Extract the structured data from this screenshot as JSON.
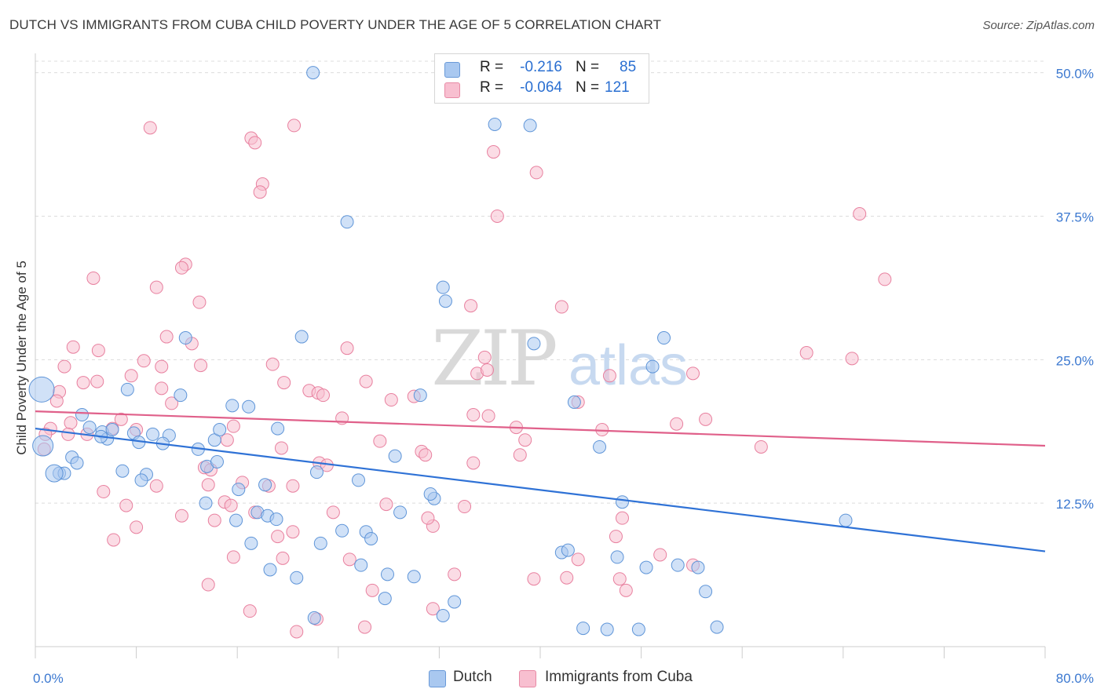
{
  "title": "DUTCH VS IMMIGRANTS FROM CUBA CHILD POVERTY UNDER THE AGE OF 5 CORRELATION CHART",
  "source": "Source: ZipAtlas.com",
  "watermark": {
    "zip": "ZIP",
    "atlas": "atlas"
  },
  "legend": {
    "rows": [
      {
        "r_label": "R =",
        "r_value": "-0.216",
        "n_label": "N =",
        "n_value": "85",
        "color": "#a9c8f0",
        "border": "#6a9ad8"
      },
      {
        "r_label": "R =",
        "r_value": "-0.064",
        "n_label": "N =",
        "n_value": "121",
        "color": "#f8bfd0",
        "border": "#e88aa5"
      }
    ]
  },
  "bottom_legend": {
    "dutch": "Dutch",
    "cuba": "Immigrants from Cuba"
  },
  "colors": {
    "dutch_fill": "#a9c8f0",
    "dutch_stroke": "#5f95d8",
    "cuba_fill": "#f8bfd0",
    "cuba_stroke": "#e8809f",
    "dutch_line": "#2f72d6",
    "cuba_line": "#e0608a",
    "axis_text": "#3b78d0"
  },
  "chart_data": {
    "type": "scatter",
    "title": "DUTCH VS IMMIGRANTS FROM CUBA CHILD POVERTY UNDER THE AGE OF 5 CORRELATION CHART",
    "xlabel": "",
    "ylabel": "Child Poverty Under the Age of 5",
    "xlim": [
      0,
      80
    ],
    "ylim": [
      0,
      51
    ],
    "x_tick_labels": [
      "0.0%",
      "80.0%"
    ],
    "y_ticks": [
      12.5,
      25.0,
      37.5,
      50.0
    ],
    "y_tick_labels": [
      "12.5%",
      "25.0%",
      "37.5%",
      "50.0%"
    ],
    "grid": true,
    "series": [
      {
        "name": "Dutch",
        "trend": {
          "x": [
            0,
            80
          ],
          "y": [
            19.0,
            8.3
          ]
        },
        "points": [
          [
            22.0,
            50.0
          ],
          [
            36.4,
            45.5
          ],
          [
            39.2,
            45.4
          ],
          [
            24.7,
            37.0
          ],
          [
            32.3,
            31.3
          ],
          [
            32.5,
            30.1
          ],
          [
            11.9,
            26.9
          ],
          [
            21.1,
            27.0
          ],
          [
            39.5,
            26.4
          ],
          [
            48.9,
            24.4
          ],
          [
            49.8,
            26.9
          ],
          [
            7.3,
            22.4
          ],
          [
            11.5,
            21.9
          ],
          [
            30.5,
            21.9
          ],
          [
            15.6,
            21.0
          ],
          [
            16.9,
            20.9
          ],
          [
            42.7,
            21.3
          ],
          [
            3.7,
            20.2
          ],
          [
            4.3,
            19.1
          ],
          [
            5.3,
            18.7
          ],
          [
            5.7,
            18.1
          ],
          [
            6.1,
            18.9
          ],
          [
            7.8,
            18.6
          ],
          [
            9.3,
            18.5
          ],
          [
            10.6,
            18.4
          ],
          [
            14.2,
            18.0
          ],
          [
            10.1,
            17.7
          ],
          [
            8.2,
            17.8
          ],
          [
            12.9,
            17.2
          ],
          [
            2.9,
            16.5
          ],
          [
            3.3,
            16.0
          ],
          [
            1.9,
            15.1
          ],
          [
            2.3,
            15.1
          ],
          [
            6.9,
            15.3
          ],
          [
            8.8,
            15.0
          ],
          [
            8.4,
            14.5
          ],
          [
            13.6,
            15.7
          ],
          [
            16.1,
            13.7
          ],
          [
            14.6,
            18.9
          ],
          [
            19.2,
            19.0
          ],
          [
            18.2,
            14.1
          ],
          [
            22.3,
            15.2
          ],
          [
            25.6,
            14.5
          ],
          [
            28.5,
            16.6
          ],
          [
            31.6,
            12.9
          ],
          [
            31.3,
            13.3
          ],
          [
            13.5,
            12.5
          ],
          [
            15.9,
            11.0
          ],
          [
            17.6,
            11.7
          ],
          [
            18.4,
            11.4
          ],
          [
            19.1,
            11.1
          ],
          [
            24.3,
            10.1
          ],
          [
            26.2,
            10.0
          ],
          [
            26.6,
            9.4
          ],
          [
            22.6,
            9.0
          ],
          [
            17.1,
            9.0
          ],
          [
            28.9,
            11.7
          ],
          [
            25.8,
            7.1
          ],
          [
            27.9,
            6.3
          ],
          [
            30.0,
            6.1
          ],
          [
            20.7,
            6.0
          ],
          [
            18.6,
            6.7
          ],
          [
            27.7,
            4.2
          ],
          [
            33.2,
            3.9
          ],
          [
            32.3,
            2.7
          ],
          [
            41.7,
            8.2
          ],
          [
            42.2,
            8.4
          ],
          [
            46.1,
            7.8
          ],
          [
            48.4,
            6.9
          ],
          [
            52.5,
            6.9
          ],
          [
            50.9,
            7.1
          ],
          [
            53.1,
            4.8
          ],
          [
            47.8,
            1.5
          ],
          [
            43.4,
            1.6
          ],
          [
            45.3,
            1.5
          ],
          [
            54.0,
            1.7
          ],
          [
            22.1,
            2.5
          ],
          [
            44.7,
            17.4
          ],
          [
            46.5,
            12.6
          ],
          [
            64.2,
            11.0
          ],
          [
            0.5,
            22.4
          ],
          [
            0.6,
            17.5
          ],
          [
            1.5,
            15.1
          ],
          [
            5.2,
            18.3
          ],
          [
            14.4,
            16.1
          ]
        ]
      },
      {
        "name": "Immigrants from Cuba",
        "trend": {
          "x": [
            0,
            80
          ],
          "y": [
            20.5,
            17.5
          ]
        },
        "points": [
          [
            9.1,
            45.2
          ],
          [
            17.1,
            44.3
          ],
          [
            17.4,
            43.9
          ],
          [
            20.5,
            45.4
          ],
          [
            36.3,
            43.1
          ],
          [
            39.7,
            41.3
          ],
          [
            18.0,
            40.3
          ],
          [
            17.8,
            39.6
          ],
          [
            36.6,
            37.5
          ],
          [
            65.3,
            37.7
          ],
          [
            67.3,
            32.0
          ],
          [
            11.9,
            33.3
          ],
          [
            11.6,
            33.0
          ],
          [
            4.6,
            32.1
          ],
          [
            9.6,
            31.3
          ],
          [
            13.0,
            30.0
          ],
          [
            34.5,
            29.7
          ],
          [
            41.7,
            29.6
          ],
          [
            10.4,
            27.0
          ],
          [
            12.4,
            26.4
          ],
          [
            3.0,
            26.1
          ],
          [
            5.0,
            25.8
          ],
          [
            24.7,
            26.0
          ],
          [
            35.6,
            25.2
          ],
          [
            61.1,
            25.6
          ],
          [
            64.7,
            25.1
          ],
          [
            8.6,
            24.9
          ],
          [
            10.0,
            24.4
          ],
          [
            13.1,
            24.5
          ],
          [
            18.8,
            24.6
          ],
          [
            2.3,
            24.4
          ],
          [
            3.8,
            23.0
          ],
          [
            4.9,
            23.1
          ],
          [
            7.6,
            23.6
          ],
          [
            26.2,
            23.1
          ],
          [
            19.7,
            23.0
          ],
          [
            21.7,
            22.3
          ],
          [
            22.4,
            22.1
          ],
          [
            22.8,
            21.9
          ],
          [
            10.0,
            22.5
          ],
          [
            1.9,
            22.2
          ],
          [
            1.7,
            21.4
          ],
          [
            10.8,
            21.2
          ],
          [
            28.2,
            21.5
          ],
          [
            30.0,
            21.8
          ],
          [
            43.0,
            21.3
          ],
          [
            35.0,
            23.8
          ],
          [
            35.8,
            24.1
          ],
          [
            45.5,
            23.6
          ],
          [
            52.1,
            23.8
          ],
          [
            2.8,
            19.5
          ],
          [
            4.1,
            18.5
          ],
          [
            6.1,
            19.0
          ],
          [
            6.8,
            19.8
          ],
          [
            8.0,
            18.9
          ],
          [
            1.2,
            19.0
          ],
          [
            0.8,
            18.5
          ],
          [
            0.7,
            17.2
          ],
          [
            15.7,
            19.2
          ],
          [
            15.2,
            18.0
          ],
          [
            19.5,
            17.3
          ],
          [
            24.3,
            19.9
          ],
          [
            34.7,
            20.2
          ],
          [
            38.1,
            19.1
          ],
          [
            44.9,
            18.9
          ],
          [
            50.8,
            19.4
          ],
          [
            53.1,
            19.8
          ],
          [
            57.5,
            17.4
          ],
          [
            27.3,
            17.9
          ],
          [
            30.6,
            17.0
          ],
          [
            30.9,
            16.7
          ],
          [
            22.5,
            16.0
          ],
          [
            23.1,
            15.8
          ],
          [
            34.7,
            16.0
          ],
          [
            38.8,
            18.0
          ],
          [
            38.4,
            16.7
          ],
          [
            13.4,
            15.6
          ],
          [
            13.9,
            15.4
          ],
          [
            18.5,
            14.0
          ],
          [
            20.4,
            14.0
          ],
          [
            9.6,
            14.0
          ],
          [
            13.7,
            14.1
          ],
          [
            16.4,
            14.3
          ],
          [
            5.4,
            13.5
          ],
          [
            7.2,
            12.3
          ],
          [
            11.6,
            11.4
          ],
          [
            15.0,
            12.6
          ],
          [
            15.5,
            12.3
          ],
          [
            17.4,
            11.7
          ],
          [
            23.6,
            11.7
          ],
          [
            27.8,
            12.4
          ],
          [
            34.0,
            12.2
          ],
          [
            46.5,
            11.2
          ],
          [
            8.0,
            10.4
          ],
          [
            6.2,
            9.3
          ],
          [
            19.2,
            9.6
          ],
          [
            20.4,
            10.0
          ],
          [
            14.2,
            11.0
          ],
          [
            31.5,
            10.5
          ],
          [
            31.1,
            11.2
          ],
          [
            46.0,
            9.6
          ],
          [
            15.7,
            7.8
          ],
          [
            19.6,
            7.7
          ],
          [
            24.9,
            7.6
          ],
          [
            43.0,
            7.6
          ],
          [
            49.5,
            8.0
          ],
          [
            52.1,
            7.1
          ],
          [
            39.5,
            5.9
          ],
          [
            42.1,
            6.0
          ],
          [
            33.2,
            6.3
          ],
          [
            26.7,
            4.9
          ],
          [
            13.7,
            5.4
          ],
          [
            17.0,
            3.1
          ],
          [
            31.5,
            3.3
          ],
          [
            22.3,
            2.4
          ],
          [
            26.1,
            1.7
          ],
          [
            20.7,
            1.3
          ],
          [
            46.3,
            5.9
          ],
          [
            46.8,
            4.9
          ],
          [
            35.9,
            20.1
          ],
          [
            2.6,
            18.5
          ]
        ]
      }
    ]
  }
}
